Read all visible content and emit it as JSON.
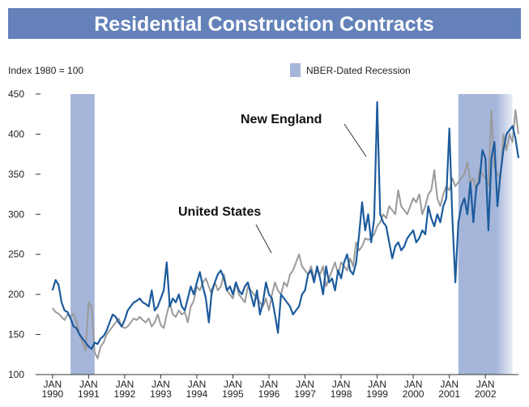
{
  "chart_data": {
    "type": "line",
    "title": "Residential Construction Contracts",
    "y_axis_label": "Index 1980 = 100",
    "legend_recession": "NBER-Dated Recession",
    "recession_color": "#a6b6da",
    "recessions": [
      [
        "1990-07",
        "1991-03"
      ],
      [
        "2001-04",
        "2002-10"
      ]
    ],
    "annotations": [
      {
        "text": "New England",
        "series": 0
      },
      {
        "text": "United States",
        "series": 1
      }
    ],
    "xlim": [
      "1989-09",
      "2002-12"
    ],
    "xticks": [
      {
        "value": "1990-01",
        "label": "JAN\n1990"
      },
      {
        "value": "1991-01",
        "label": "JAN\n1991"
      },
      {
        "value": "1992-01",
        "label": "JAN\n1992"
      },
      {
        "value": "1993-01",
        "label": "JAN\n1993"
      },
      {
        "value": "1994-01",
        "label": "JAN\n1994"
      },
      {
        "value": "1995-01",
        "label": "JAN\n1995"
      },
      {
        "value": "1996-01",
        "label": "JAN\n1996"
      },
      {
        "value": "1997-01",
        "label": "JAN\n1997"
      },
      {
        "value": "1998-01",
        "label": "JAN\n1998"
      },
      {
        "value": "1999-01",
        "label": "JAN\n1999"
      },
      {
        "value": "2000-01",
        "label": "JAN\n2000"
      },
      {
        "value": "2001-01",
        "label": "JAN\n2001"
      },
      {
        "value": "2002-01",
        "label": "JAN\n2002"
      }
    ],
    "ylim": [
      100,
      450
    ],
    "yticks": [
      100,
      150,
      200,
      250,
      300,
      350,
      400,
      450
    ],
    "grid": false,
    "x": [
      "1990-01",
      "1990-02",
      "1990-03",
      "1990-04",
      "1990-05",
      "1990-06",
      "1990-07",
      "1990-08",
      "1990-09",
      "1990-10",
      "1990-11",
      "1990-12",
      "1991-01",
      "1991-02",
      "1991-03",
      "1991-04",
      "1991-05",
      "1991-06",
      "1991-07",
      "1991-08",
      "1991-09",
      "1991-10",
      "1991-11",
      "1991-12",
      "1992-01",
      "1992-02",
      "1992-03",
      "1992-04",
      "1992-05",
      "1992-06",
      "1992-07",
      "1992-08",
      "1992-09",
      "1992-10",
      "1992-11",
      "1992-12",
      "1993-01",
      "1993-02",
      "1993-03",
      "1993-04",
      "1993-05",
      "1993-06",
      "1993-07",
      "1993-08",
      "1993-09",
      "1993-10",
      "1993-11",
      "1993-12",
      "1994-01",
      "1994-02",
      "1994-03",
      "1994-04",
      "1994-05",
      "1994-06",
      "1994-07",
      "1994-08",
      "1994-09",
      "1994-10",
      "1994-11",
      "1994-12",
      "1995-01",
      "1995-02",
      "1995-03",
      "1995-04",
      "1995-05",
      "1995-06",
      "1995-07",
      "1995-08",
      "1995-09",
      "1995-10",
      "1995-11",
      "1995-12",
      "1996-01",
      "1996-02",
      "1996-03",
      "1996-04",
      "1996-05",
      "1996-06",
      "1996-07",
      "1996-08",
      "1996-09",
      "1996-10",
      "1996-11",
      "1996-12",
      "1997-01",
      "1997-02",
      "1997-03",
      "1997-04",
      "1997-05",
      "1997-06",
      "1997-07",
      "1997-08",
      "1997-09",
      "1997-10",
      "1997-11",
      "1997-12",
      "1998-01",
      "1998-02",
      "1998-03",
      "1998-04",
      "1998-05",
      "1998-06",
      "1998-07",
      "1998-08",
      "1998-09",
      "1998-10",
      "1998-11",
      "1998-12",
      "1999-01",
      "1999-02",
      "1999-03",
      "1999-04",
      "1999-05",
      "1999-06",
      "1999-07",
      "1999-08",
      "1999-09",
      "1999-10",
      "1999-11",
      "1999-12",
      "2000-01",
      "2000-02",
      "2000-03",
      "2000-04",
      "2000-05",
      "2000-06",
      "2000-07",
      "2000-08",
      "2000-09",
      "2000-10",
      "2000-11",
      "2000-12",
      "2001-01",
      "2001-02",
      "2001-03",
      "2001-04",
      "2001-05",
      "2001-06",
      "2001-07",
      "2001-08",
      "2001-09",
      "2001-10",
      "2001-11",
      "2001-12",
      "2002-01",
      "2002-02",
      "2002-03",
      "2002-04",
      "2002-05",
      "2002-06",
      "2002-07",
      "2002-08",
      "2002-09",
      "2002-10",
      "2002-11",
      "2002-12"
    ],
    "series": [
      {
        "name": "New England",
        "color": "#1c5b9c",
        "values": [
          205,
          218,
          212,
          190,
          180,
          178,
          170,
          160,
          158,
          150,
          145,
          140,
          135,
          132,
          140,
          138,
          145,
          148,
          155,
          165,
          175,
          172,
          165,
          160,
          168,
          180,
          185,
          190,
          192,
          195,
          190,
          188,
          185,
          205,
          180,
          185,
          195,
          205,
          240,
          185,
          195,
          190,
          200,
          185,
          180,
          195,
          210,
          200,
          215,
          228,
          210,
          195,
          165,
          205,
          215,
          225,
          230,
          220,
          205,
          210,
          200,
          215,
          205,
          200,
          210,
          215,
          200,
          185,
          205,
          175,
          190,
          215,
          200,
          195,
          175,
          152,
          200,
          195,
          190,
          185,
          175,
          180,
          185,
          200,
          205,
          225,
          230,
          215,
          235,
          220,
          200,
          235,
          215,
          220,
          205,
          230,
          220,
          240,
          250,
          230,
          225,
          240,
          275,
          315,
          280,
          300,
          265,
          295,
          440,
          300,
          290,
          285,
          265,
          245,
          260,
          265,
          255,
          260,
          270,
          275,
          280,
          265,
          270,
          280,
          275,
          310,
          295,
          285,
          300,
          290,
          310,
          320,
          407,
          295,
          215,
          290,
          310,
          320,
          300,
          340,
          290,
          335,
          340,
          380,
          370,
          280,
          370,
          390,
          310,
          350,
          380,
          400,
          405,
          410,
          395,
          370
        ]
      },
      {
        "name": "United States",
        "color": "#9a9a9a",
        "values": [
          183,
          178,
          176,
          172,
          168,
          175,
          172,
          176,
          165,
          150,
          140,
          130,
          190,
          185,
          128,
          120,
          135,
          140,
          150,
          155,
          160,
          165,
          170,
          160,
          158,
          160,
          165,
          170,
          168,
          172,
          168,
          165,
          170,
          160,
          165,
          175,
          162,
          158,
          175,
          190,
          175,
          172,
          180,
          175,
          178,
          165,
          185,
          192,
          210,
          205,
          215,
          220,
          210,
          200,
          215,
          205,
          210,
          225,
          205,
          200,
          195,
          215,
          200,
          195,
          190,
          210,
          205,
          200,
          195,
          190,
          185,
          195,
          180,
          200,
          215,
          205,
          200,
          215,
          210,
          225,
          230,
          240,
          250,
          235,
          230,
          225,
          235,
          220,
          230,
          225,
          235,
          210,
          220,
          230,
          240,
          225,
          240,
          235,
          230,
          245,
          235,
          265,
          255,
          260,
          270,
          268,
          270,
          275,
          285,
          290,
          300,
          295,
          310,
          305,
          300,
          330,
          310,
          305,
          300,
          310,
          320,
          315,
          325,
          300,
          310,
          325,
          330,
          355,
          320,
          310,
          325,
          335,
          330,
          345,
          335,
          340,
          345,
          350,
          365,
          340,
          345,
          330,
          355,
          350,
          345,
          335,
          430,
          360,
          350,
          345,
          400,
          380,
          400,
          390,
          430,
          400
        ]
      }
    ]
  }
}
